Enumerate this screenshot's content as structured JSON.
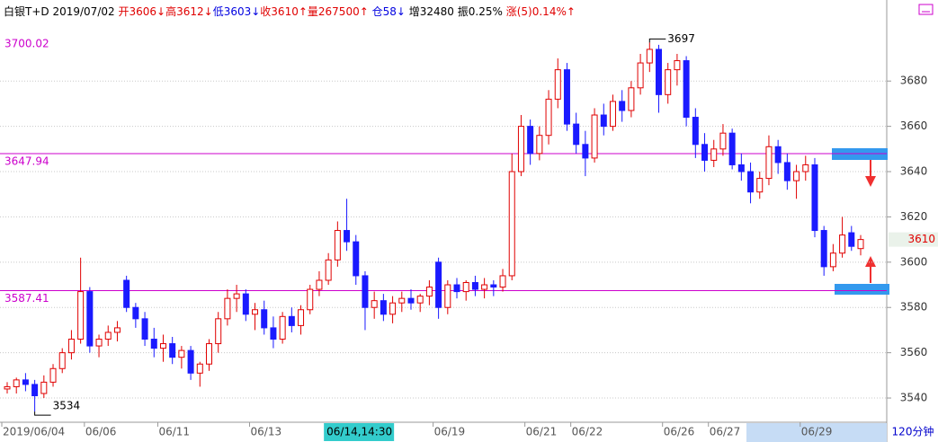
{
  "chart_data": {
    "type": "candlestick",
    "header": [
      {
        "text": "白银T+D",
        "color": "#000000"
      },
      {
        "text": "2019/07/02",
        "color": "#000000"
      },
      {
        "text": "开3606↓",
        "color": "#e00000"
      },
      {
        "text": "高3612↓",
        "color": "#e00000"
      },
      {
        "text": "低3603↓",
        "color": "#0000e0"
      },
      {
        "text": "收3610↑",
        "color": "#e00000"
      },
      {
        "text": "量267500↑",
        "color": "#e00000"
      },
      {
        "text": "仓58↓",
        "color": "#0000e0"
      },
      {
        "text": "增32480",
        "color": "#000000"
      },
      {
        "text": "振0.25%",
        "color": "#000000"
      },
      {
        "text": "涨(5)0.14%↑",
        "color": "#e00000"
      }
    ],
    "categories": [
      "2019/06/04",
      null,
      null,
      null,
      null,
      null,
      null,
      null,
      null,
      "06/06",
      null,
      null,
      null,
      null,
      null,
      null,
      null,
      "06/11",
      null,
      null,
      null,
      null,
      null,
      null,
      null,
      null,
      null,
      "06/13",
      null,
      null,
      null,
      null,
      null,
      null,
      null,
      null,
      null,
      null,
      null,
      null,
      null,
      null,
      null,
      null,
      null,
      null,
      null,
      "06/19",
      null,
      null,
      null,
      null,
      null,
      null,
      null,
      null,
      null,
      "06/21",
      null,
      null,
      null,
      null,
      "06/22",
      null,
      null,
      null,
      null,
      null,
      null,
      null,
      null,
      null,
      "06/26",
      null,
      null,
      null,
      null,
      "06/27",
      null,
      null,
      null,
      null,
      null,
      null,
      null,
      null,
      null,
      "06/29",
      null,
      null,
      null,
      null,
      null,
      null
    ],
    "open": [
      3544,
      3545,
      3548,
      3546,
      3542,
      3547,
      3553,
      3560,
      3566,
      3587,
      3563,
      3566,
      3569,
      3592,
      3580,
      3575,
      3566,
      3562,
      3564,
      3558,
      3561,
      3551,
      3555,
      3564,
      3575,
      3584,
      3586,
      3577,
      3579,
      3571,
      3566,
      3576,
      3572,
      3579,
      3588,
      3592,
      3601,
      3614,
      3609,
      3594,
      3580,
      3583,
      3577,
      3582,
      3584,
      3582,
      3585,
      3600,
      3580,
      3590,
      3587,
      3591,
      3588,
      3590,
      3589,
      3594,
      3640,
      3660,
      3648,
      3656,
      3672,
      3685,
      3661,
      3652,
      3646,
      3665,
      3660,
      3671,
      3667,
      3677,
      3688,
      3694,
      3674,
      3685,
      3689,
      3664,
      3652,
      3645,
      3650,
      3657,
      3643,
      3640,
      3631,
      3637,
      3651,
      3644,
      3636,
      3640,
      3643,
      3614,
      3598,
      3604,
      3613,
      3606
    ],
    "high": [
      3547,
      3549,
      3551,
      3548,
      3550,
      3555,
      3562,
      3570,
      3602,
      3589,
      3568,
      3572,
      3574,
      3594,
      3582,
      3578,
      3571,
      3568,
      3567,
      3563,
      3563,
      3556,
      3566,
      3578,
      3588,
      3590,
      3588,
      3582,
      3583,
      3576,
      3578,
      3580,
      3581,
      3590,
      3596,
      3604,
      3618,
      3628,
      3612,
      3596,
      3587,
      3586,
      3585,
      3587,
      3588,
      3586,
      3592,
      3602,
      3592,
      3593,
      3592,
      3594,
      3593,
      3592,
      3597,
      3648,
      3665,
      3663,
      3660,
      3676,
      3690,
      3688,
      3666,
      3658,
      3668,
      3670,
      3674,
      3676,
      3680,
      3692,
      3697,
      3696,
      3688,
      3692,
      3691,
      3668,
      3657,
      3654,
      3661,
      3659,
      3648,
      3644,
      3640,
      3656,
      3654,
      3648,
      3643,
      3647,
      3646,
      3616,
      3608,
      3620,
      3616,
      3612
    ],
    "low": [
      3542,
      3542,
      3543,
      3534,
      3540,
      3545,
      3551,
      3557,
      3564,
      3560,
      3558,
      3563,
      3565,
      3578,
      3571,
      3563,
      3558,
      3556,
      3555,
      3553,
      3548,
      3545,
      3552,
      3560,
      3572,
      3578,
      3574,
      3570,
      3568,
      3562,
      3564,
      3569,
      3568,
      3577,
      3585,
      3590,
      3598,
      3605,
      3590,
      3570,
      3575,
      3574,
      3573,
      3578,
      3579,
      3578,
      3581,
      3575,
      3577,
      3584,
      3583,
      3585,
      3584,
      3585,
      3587,
      3592,
      3638,
      3643,
      3645,
      3652,
      3668,
      3658,
      3648,
      3638,
      3644,
      3656,
      3658,
      3662,
      3664,
      3674,
      3684,
      3666,
      3670,
      3678,
      3660,
      3646,
      3640,
      3642,
      3647,
      3641,
      3636,
      3626,
      3628,
      3634,
      3639,
      3632,
      3628,
      3636,
      3611,
      3594,
      3596,
      3602,
      3605,
      3603
    ],
    "close": [
      3545,
      3548,
      3546,
      3541,
      3547,
      3553,
      3560,
      3566,
      3587,
      3563,
      3566,
      3569,
      3571,
      3580,
      3575,
      3566,
      3562,
      3564,
      3558,
      3561,
      3551,
      3555,
      3564,
      3575,
      3584,
      3586,
      3577,
      3579,
      3571,
      3566,
      3576,
      3572,
      3579,
      3588,
      3592,
      3601,
      3614,
      3609,
      3594,
      3580,
      3583,
      3577,
      3582,
      3584,
      3582,
      3585,
      3589,
      3580,
      3590,
      3587,
      3591,
      3588,
      3590,
      3589,
      3594,
      3640,
      3660,
      3648,
      3656,
      3672,
      3685,
      3661,
      3652,
      3646,
      3665,
      3660,
      3671,
      3667,
      3677,
      3688,
      3694,
      3674,
      3685,
      3689,
      3664,
      3652,
      3645,
      3650,
      3657,
      3643,
      3640,
      3631,
      3637,
      3651,
      3644,
      3636,
      3640,
      3643,
      3614,
      3598,
      3604,
      3612,
      3607,
      3610
    ],
    "up_color": "#e00000",
    "down_color": "#1a1aff",
    "ylim": [
      3529.3,
      3715.8
    ],
    "yticks": [
      3540,
      3560,
      3580,
      3600,
      3620,
      3640,
      3660,
      3680
    ],
    "grid": true,
    "levels": [
      {
        "value": 3700.02,
        "line": false
      },
      {
        "value": 3647.94,
        "line": true
      },
      {
        "value": 3587.41,
        "line": true
      }
    ],
    "level_color": "#cc00cc",
    "high_label": 3697,
    "low_label": 3534,
    "last_price": 3610,
    "cursor_label": "06/14,14:30",
    "period": "120分钟"
  }
}
